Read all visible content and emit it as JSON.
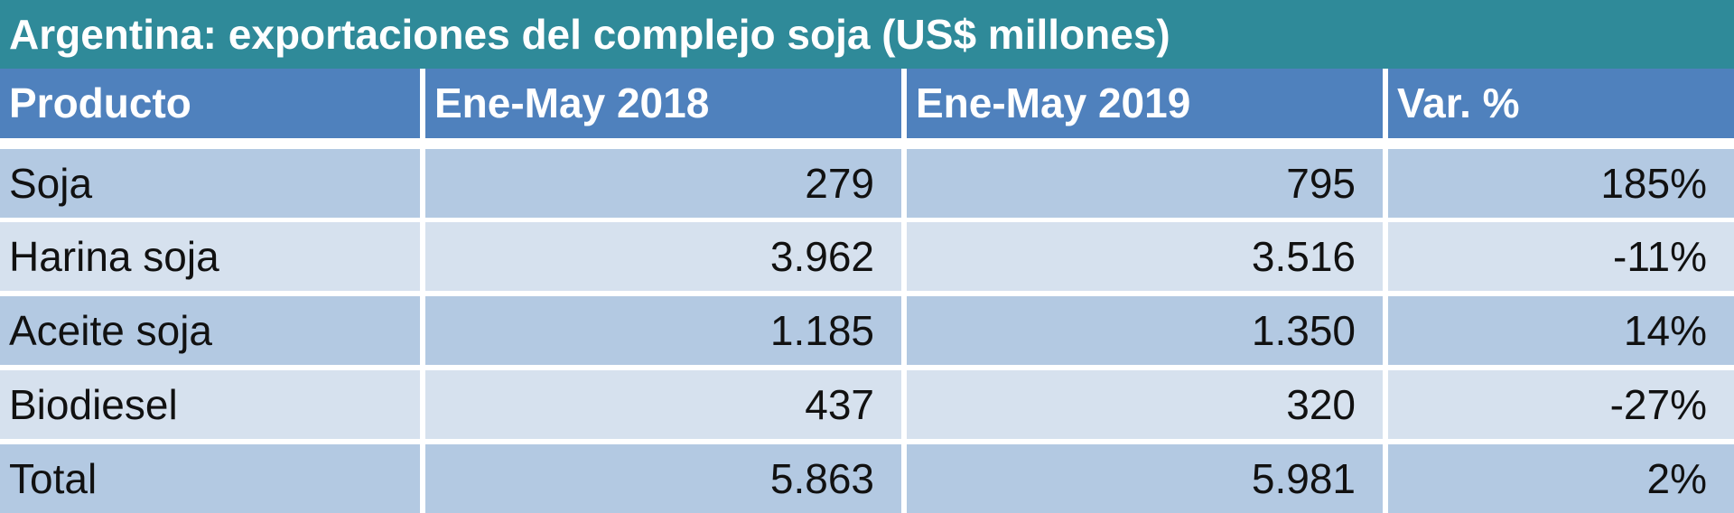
{
  "title": "Argentina: exportaciones del complejo soja (US$ millones)",
  "table": {
    "header": [
      "Producto",
      "Ene-May 2018",
      "Ene-May 2019",
      "Var. %"
    ],
    "rows": [
      [
        "Soja",
        "279",
        "795",
        "185%"
      ],
      [
        "Harina soja",
        "3.962",
        "3.516",
        "-11%"
      ],
      [
        "Aceite soja",
        "1.185",
        "1.350",
        "14%"
      ],
      [
        "Biodiesel",
        "437",
        "320",
        "-27%"
      ],
      [
        "Total",
        "5.863",
        "5.981",
        "2%"
      ]
    ]
  }
}
